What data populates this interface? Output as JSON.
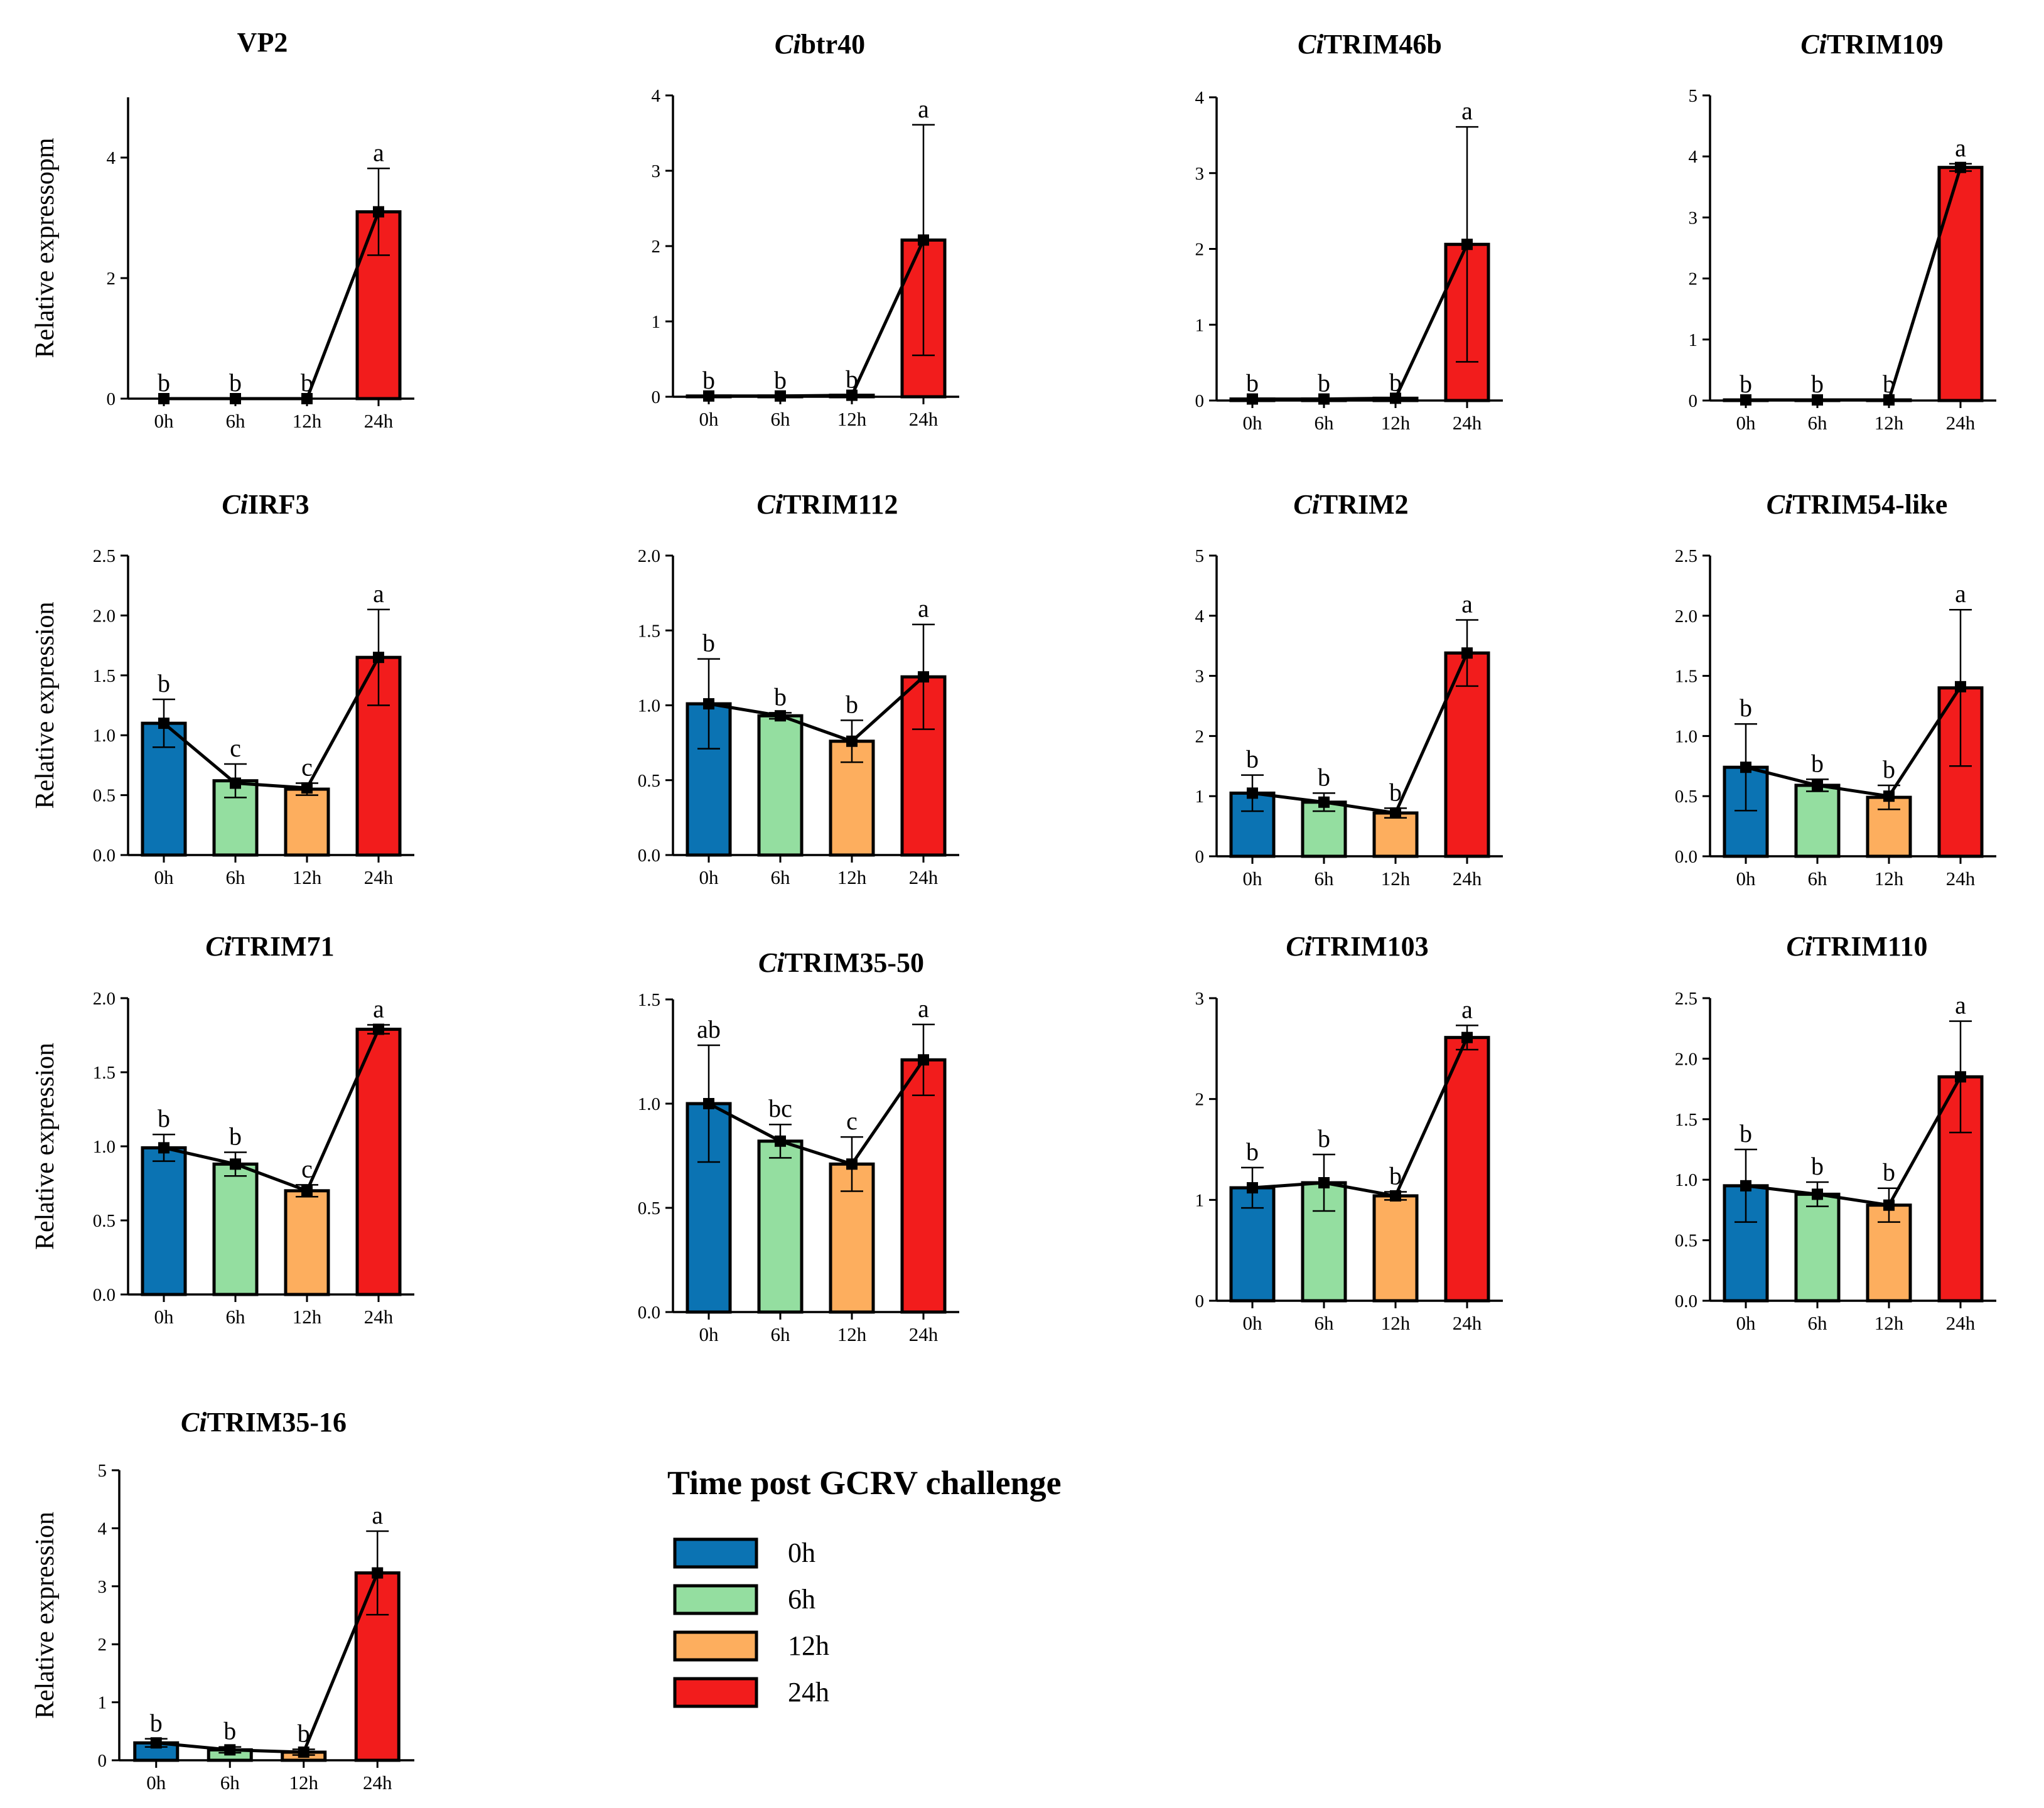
{
  "colors": {
    "0h": "#0b73b3",
    "6h": "#94dea0",
    "12h": "#fdae5e",
    "24h": "#f21c1c",
    "axis": "#000000"
  },
  "legend": {
    "title": "Time post GCRV challenge",
    "items": [
      {
        "label": "0h",
        "color": "#0b73b3"
      },
      {
        "label": "6h",
        "color": "#94dea0"
      },
      {
        "label": "12h",
        "color": "#fdae5e"
      },
      {
        "label": "24h",
        "color": "#f21c1c"
      }
    ]
  },
  "chart_data": [
    {
      "type": "bar",
      "title_prefix": "",
      "title_rest": "VP2",
      "ylabel": "Relative expressopm",
      "categories": [
        "0h",
        "6h",
        "12h",
        "24h"
      ],
      "values": [
        0,
        0,
        0,
        3.1
      ],
      "errors": [
        0,
        0,
        0,
        0.72
      ],
      "letters": [
        "b",
        "b",
        "b",
        "a"
      ],
      "ylim": [
        0,
        5
      ],
      "yticks": [
        "0",
        "2",
        "4"
      ],
      "ytick_values": [
        0,
        2,
        4
      ],
      "line_values": [
        0,
        0,
        0,
        3.1
      ]
    },
    {
      "type": "bar",
      "title_prefix": "Ci",
      "title_rest": "btr40",
      "ylabel": "",
      "categories": [
        "0h",
        "6h",
        "12h",
        "24h"
      ],
      "values": [
        0.01,
        0.01,
        0.02,
        2.08
      ],
      "errors": [
        0,
        0,
        0,
        1.53
      ],
      "letters": [
        "b",
        "b",
        "b",
        "a"
      ],
      "ylim": [
        0,
        4
      ],
      "yticks": [
        "0",
        "1",
        "2",
        "3",
        "4"
      ],
      "ytick_values": [
        0,
        1,
        2,
        3,
        4
      ],
      "line_values": [
        0.01,
        0.01,
        0.02,
        2.08
      ]
    },
    {
      "type": "bar",
      "title_prefix": "Ci",
      "title_rest": "TRIM46b",
      "ylabel": "",
      "categories": [
        "0h",
        "6h",
        "12h",
        "24h"
      ],
      "values": [
        0.02,
        0.02,
        0.03,
        2.06
      ],
      "errors": [
        0,
        0,
        0,
        1.55
      ],
      "letters": [
        "b",
        "b",
        "b",
        "a"
      ],
      "ylim": [
        0,
        4
      ],
      "yticks": [
        "0",
        "1",
        "2",
        "3",
        "4"
      ],
      "ytick_values": [
        0,
        1,
        2,
        3,
        4
      ],
      "line_values": [
        0.02,
        0.02,
        0.03,
        2.06
      ]
    },
    {
      "type": "bar",
      "title_prefix": "Ci",
      "title_rest": "TRIM109",
      "ylabel": "",
      "categories": [
        "0h",
        "6h",
        "12h",
        "24h"
      ],
      "values": [
        0.01,
        0.01,
        0.01,
        3.82
      ],
      "errors": [
        0,
        0,
        0,
        0.06
      ],
      "letters": [
        "b",
        "b",
        "b",
        "a"
      ],
      "ylim": [
        0,
        5
      ],
      "yticks": [
        "0",
        "1",
        "2",
        "3",
        "4",
        "5"
      ],
      "ytick_values": [
        0,
        1,
        2,
        3,
        4,
        5
      ],
      "line_values": [
        0.01,
        0.01,
        0.01,
        3.82
      ]
    },
    {
      "type": "bar",
      "title_prefix": "Ci",
      "title_rest": "IRF3",
      "ylabel": "Relative expression",
      "categories": [
        "0h",
        "6h",
        "12h",
        "24h"
      ],
      "values": [
        1.1,
        0.62,
        0.55,
        1.65
      ],
      "errors": [
        0.2,
        0.14,
        0.05,
        0.4
      ],
      "letters": [
        "b",
        "c",
        "c",
        "a"
      ],
      "ylim": [
        0,
        2.5
      ],
      "yticks": [
        "0.0",
        "0.5",
        "1.0",
        "1.5",
        "2.0",
        "2.5"
      ],
      "ytick_values": [
        0,
        0.5,
        1,
        1.5,
        2,
        2.5
      ],
      "line_values": [
        1.1,
        0.6,
        0.56,
        1.65
      ]
    },
    {
      "type": "bar",
      "title_prefix": "Ci",
      "title_rest": "TRIM112",
      "ylabel": "",
      "categories": [
        "0h",
        "6h",
        "12h",
        "24h"
      ],
      "values": [
        1.01,
        0.93,
        0.76,
        1.19
      ],
      "errors": [
        0.3,
        0.02,
        0.14,
        0.35
      ],
      "letters": [
        "b",
        "b",
        "b",
        "a"
      ],
      "ylim": [
        0,
        2.0
      ],
      "yticks": [
        "0.0",
        "0.5",
        "1.0",
        "1.5",
        "2.0"
      ],
      "ytick_values": [
        0,
        0.5,
        1,
        1.5,
        2
      ],
      "line_values": [
        1.01,
        0.93,
        0.76,
        1.19
      ]
    },
    {
      "type": "bar",
      "title_prefix": "Ci",
      "title_rest": "TRIM2",
      "ylabel": "",
      "categories": [
        "0h",
        "6h",
        "12h",
        "24h"
      ],
      "values": [
        1.05,
        0.9,
        0.72,
        3.38
      ],
      "errors": [
        0.3,
        0.15,
        0.08,
        0.55
      ],
      "letters": [
        "b",
        "b",
        "b",
        "a"
      ],
      "ylim": [
        0,
        5
      ],
      "yticks": [
        "0",
        "1",
        "2",
        "3",
        "4",
        "5"
      ],
      "ytick_values": [
        0,
        1,
        2,
        3,
        4,
        5
      ],
      "line_values": [
        1.05,
        0.9,
        0.72,
        3.38
      ]
    },
    {
      "type": "bar",
      "title_prefix": "Ci",
      "title_rest": "TRIM54-like",
      "ylabel": "",
      "categories": [
        "0h",
        "6h",
        "12h",
        "24h"
      ],
      "values": [
        0.74,
        0.59,
        0.49,
        1.4
      ],
      "errors": [
        0.36,
        0.05,
        0.1,
        0.65
      ],
      "letters": [
        "b",
        "b",
        "b",
        "a"
      ],
      "ylim": [
        0,
        2.5
      ],
      "yticks": [
        "0.0",
        "0.5",
        "1.0",
        "1.5",
        "2.0",
        "2.5"
      ],
      "ytick_values": [
        0,
        0.5,
        1,
        1.5,
        2,
        2.5
      ],
      "line_values": [
        0.74,
        0.59,
        0.5,
        1.41
      ]
    },
    {
      "type": "bar",
      "title_prefix": "Ci",
      "title_rest": "TRIM71",
      "ylabel": "Relative expression",
      "categories": [
        "0h",
        "6h",
        "12h",
        "24h"
      ],
      "values": [
        0.99,
        0.88,
        0.7,
        1.79
      ],
      "errors": [
        0.09,
        0.08,
        0.04,
        0.03
      ],
      "letters": [
        "b",
        "b",
        "c",
        "a"
      ],
      "ylim": [
        0,
        2.0
      ],
      "yticks": [
        "0.0",
        "0.5",
        "1.0",
        "1.5",
        "2.0"
      ],
      "ytick_values": [
        0,
        0.5,
        1,
        1.5,
        2
      ],
      "line_values": [
        0.99,
        0.88,
        0.7,
        1.79
      ]
    },
    {
      "type": "bar",
      "title_prefix": "Ci",
      "title_rest": "TRIM35-50",
      "ylabel": "",
      "categories": [
        "0h",
        "6h",
        "12h",
        "24h"
      ],
      "values": [
        1.0,
        0.82,
        0.71,
        1.21
      ],
      "errors": [
        0.28,
        0.08,
        0.13,
        0.17
      ],
      "letters": [
        "ab",
        "bc",
        "c",
        "a"
      ],
      "ylim": [
        0,
        1.5
      ],
      "yticks": [
        "0.0",
        "0.5",
        "1.0",
        "1.5"
      ],
      "ytick_values": [
        0,
        0.5,
        1,
        1.5
      ],
      "line_values": [
        1.0,
        0.82,
        0.71,
        1.21
      ]
    },
    {
      "type": "bar",
      "title_prefix": "Ci",
      "title_rest": "TRIM103",
      "ylabel": "",
      "categories": [
        "0h",
        "6h",
        "12h",
        "24h"
      ],
      "values": [
        1.12,
        1.17,
        1.04,
        2.61
      ],
      "errors": [
        0.2,
        0.28,
        0.04,
        0.12
      ],
      "letters": [
        "b",
        "b",
        "b",
        "a"
      ],
      "ylim": [
        0,
        3
      ],
      "yticks": [
        "0",
        "1",
        "2",
        "3"
      ],
      "ytick_values": [
        0,
        1,
        2,
        3
      ],
      "line_values": [
        1.12,
        1.17,
        1.04,
        2.61
      ]
    },
    {
      "type": "bar",
      "title_prefix": "Ci",
      "title_rest": "TRIM110",
      "ylabel": "",
      "categories": [
        "0h",
        "6h",
        "12h",
        "24h"
      ],
      "values": [
        0.95,
        0.88,
        0.79,
        1.85
      ],
      "errors": [
        0.3,
        0.1,
        0.14,
        0.46
      ],
      "letters": [
        "b",
        "b",
        "b",
        "a"
      ],
      "ylim": [
        0,
        2.5
      ],
      "yticks": [
        "0.0",
        "0.5",
        "1.0",
        "1.5",
        "2.0",
        "2.5"
      ],
      "ytick_values": [
        0,
        0.5,
        1,
        1.5,
        2,
        2.5
      ],
      "line_values": [
        0.95,
        0.88,
        0.79,
        1.85
      ]
    },
    {
      "type": "bar",
      "title_prefix": "Ci",
      "title_rest": "TRIM35-16",
      "ylabel": "Relative expression",
      "categories": [
        "0h",
        "6h",
        "12h",
        "24h"
      ],
      "values": [
        0.3,
        0.18,
        0.14,
        3.23
      ],
      "errors": [
        0.07,
        0.05,
        0.05,
        0.72
      ],
      "letters": [
        "b",
        "b",
        "b",
        "a"
      ],
      "ylim": [
        0,
        5
      ],
      "yticks": [
        "0",
        "1",
        "2",
        "3",
        "4",
        "5"
      ],
      "ytick_values": [
        0,
        1,
        2,
        3,
        4,
        5
      ],
      "line_values": [
        0.3,
        0.18,
        0.14,
        3.23
      ]
    }
  ]
}
